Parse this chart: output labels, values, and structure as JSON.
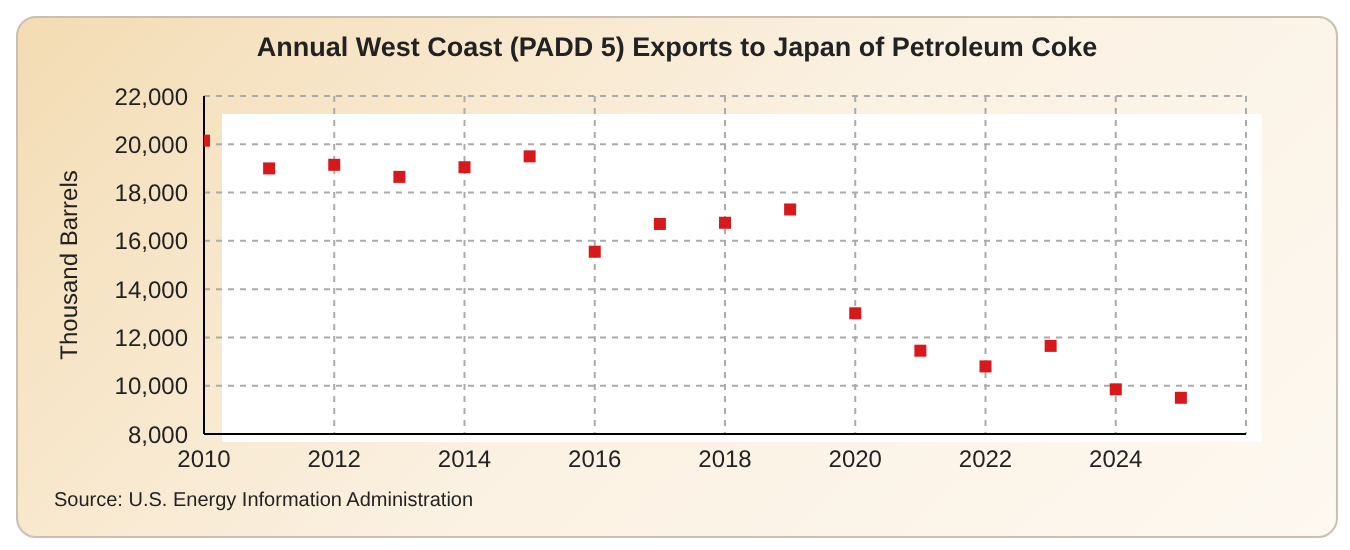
{
  "chart_data": {
    "type": "scatter",
    "title": "Annual West Coast (PADD 5) Exports to Japan of Petroleum Coke",
    "ylabel": "Thousand Barrels",
    "annotations": [
      "Source: U.S. Energy Information Administration"
    ],
    "x": [
      2010,
      2011,
      2012,
      2013,
      2014,
      2015,
      2016,
      2017,
      2018,
      2019,
      2020,
      2021,
      2022,
      2023,
      2024,
      2025
    ],
    "series": [
      {
        "color": "#d7191c",
        "values": [
          20150,
          19000,
          19150,
          18650,
          19050,
          19500,
          15550,
          16700,
          16750,
          17300,
          13000,
          11450,
          10800,
          11650,
          9850,
          9500
        ]
      }
    ],
    "xlim": [
      2010,
      2026
    ],
    "xticks": [
      2010,
      2012,
      2014,
      2016,
      2018,
      2020,
      2022,
      2024
    ],
    "ylim": [
      8000,
      22000
    ],
    "yticks": [
      {
        "value": 8000,
        "label": "8,000"
      },
      {
        "value": 10000,
        "label": "10,000"
      },
      {
        "value": 12000,
        "label": "12,000"
      },
      {
        "value": 14000,
        "label": "14,000"
      },
      {
        "value": 16000,
        "label": "16,000"
      },
      {
        "value": 18000,
        "label": "18,000"
      },
      {
        "value": 20000,
        "label": "20,000"
      },
      {
        "value": 22000,
        "label": "22,000"
      }
    ],
    "grid": true,
    "marker": "square",
    "legend": false
  }
}
